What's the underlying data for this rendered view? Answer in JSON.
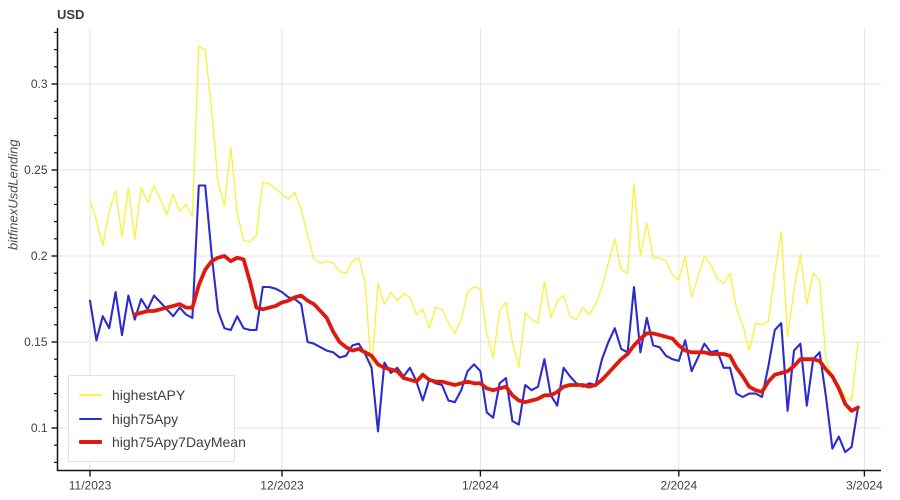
{
  "title": "USD",
  "y_axis_label": "bitfinexUsdLending",
  "colors": {
    "highestAPY": "#F8F247",
    "high75Apy": "#2C2CCE",
    "high75Apy7DayMean": "#DE1A0F",
    "grid": "#E3E3E3",
    "axis": "#141414",
    "tick_text": "#404040",
    "legend_border": "#E3E3E3",
    "background": "#FFFFFF"
  },
  "legend": {
    "position": "bottom-left",
    "items": [
      {
        "label": "highestAPY"
      },
      {
        "label": "high75Apy"
      },
      {
        "label": "high75Apy7DayMean"
      }
    ]
  },
  "chart_data": {
    "type": "line",
    "title": "USD",
    "ylabel": "bitfinexUsdLending",
    "xlabel": "",
    "grid": true,
    "legend_position": "bottom-left",
    "x_tick_labels": [
      "11/2023",
      "12/2023",
      "1/2024",
      "2/2024",
      "3/2024"
    ],
    "x_tick_days": [
      0,
      30,
      61,
      92,
      121
    ],
    "x_days_total": 121,
    "y_ticks": [
      0.1,
      0.15,
      0.2,
      0.25,
      0.3
    ],
    "y_tick_labels": [
      "0.1",
      "0.15",
      "0.2",
      "0.25",
      "0.3"
    ],
    "y_minor_step": 0.01,
    "y_minor_range": [
      0.08,
      0.33
    ],
    "ylim": [
      0.0756,
      0.3326
    ],
    "series": [
      {
        "name": "highestAPY",
        "color": "#F8F247",
        "width": 1.4,
        "values": [
          0.232,
          0.221,
          0.206,
          0.226,
          0.238,
          0.211,
          0.24,
          0.21,
          0.24,
          0.231,
          0.241,
          0.233,
          0.224,
          0.236,
          0.226,
          0.23,
          0.223,
          0.322,
          0.32,
          0.285,
          0.243,
          0.229,
          0.263,
          0.225,
          0.209,
          0.208,
          0.212,
          0.243,
          0.242,
          0.239,
          0.236,
          0.233,
          0.237,
          0.227,
          0.212,
          0.198,
          0.196,
          0.197,
          0.196,
          0.191,
          0.19,
          0.197,
          0.199,
          0.184,
          0.133,
          0.184,
          0.172,
          0.179,
          0.174,
          0.178,
          0.176,
          0.166,
          0.169,
          0.158,
          0.17,
          0.169,
          0.161,
          0.155,
          0.163,
          0.179,
          0.182,
          0.181,
          0.155,
          0.141,
          0.168,
          0.173,
          0.15,
          0.135,
          0.167,
          0.163,
          0.161,
          0.185,
          0.164,
          0.174,
          0.177,
          0.165,
          0.163,
          0.17,
          0.166,
          0.172,
          0.182,
          0.196,
          0.21,
          0.192,
          0.19,
          0.242,
          0.2,
          0.219,
          0.199,
          0.199,
          0.197,
          0.189,
          0.186,
          0.2,
          0.176,
          0.188,
          0.2,
          0.195,
          0.187,
          0.184,
          0.19,
          0.17,
          0.16,
          0.145,
          0.161,
          0.16,
          0.162,
          0.19,
          0.214,
          0.153,
          0.18,
          0.201,
          0.172,
          0.19,
          0.186,
          0.14,
          0.13,
          0.125,
          0.118,
          0.116,
          0.15
        ]
      },
      {
        "name": "high75Apy",
        "color": "#2C2CCE",
        "width": 2.1,
        "values": [
          0.174,
          0.151,
          0.165,
          0.158,
          0.179,
          0.154,
          0.177,
          0.163,
          0.175,
          0.169,
          0.177,
          0.173,
          0.169,
          0.165,
          0.17,
          0.166,
          0.164,
          0.241,
          0.241,
          0.201,
          0.168,
          0.158,
          0.157,
          0.165,
          0.158,
          0.157,
          0.157,
          0.182,
          0.182,
          0.181,
          0.179,
          0.176,
          0.175,
          0.172,
          0.15,
          0.149,
          0.147,
          0.145,
          0.144,
          0.141,
          0.142,
          0.148,
          0.149,
          0.143,
          0.135,
          0.098,
          0.138,
          0.132,
          0.135,
          0.13,
          0.135,
          0.127,
          0.116,
          0.128,
          0.126,
          0.125,
          0.116,
          0.115,
          0.122,
          0.133,
          0.137,
          0.133,
          0.109,
          0.106,
          0.126,
          0.129,
          0.104,
          0.102,
          0.125,
          0.122,
          0.124,
          0.14,
          0.119,
          0.113,
          0.135,
          0.13,
          0.126,
          0.124,
          0.126,
          0.125,
          0.14,
          0.15,
          0.158,
          0.146,
          0.144,
          0.182,
          0.144,
          0.164,
          0.148,
          0.147,
          0.142,
          0.14,
          0.139,
          0.151,
          0.133,
          0.141,
          0.149,
          0.144,
          0.145,
          0.135,
          0.135,
          0.12,
          0.118,
          0.12,
          0.12,
          0.118,
          0.136,
          0.157,
          0.161,
          0.11,
          0.145,
          0.149,
          0.113,
          0.14,
          0.144,
          0.118,
          0.088,
          0.095,
          0.086,
          0.089,
          0.112
        ]
      },
      {
        "name": "high75Apy7DayMean",
        "color": "#DE1A0F",
        "width": 3.8,
        "values": [
          null,
          null,
          null,
          null,
          null,
          null,
          null,
          0.166,
          0.167,
          0.168,
          0.168,
          0.169,
          0.17,
          0.171,
          0.172,
          0.17,
          0.17,
          0.183,
          0.192,
          0.197,
          0.199,
          0.2,
          0.197,
          0.199,
          0.198,
          0.185,
          0.17,
          0.169,
          0.17,
          0.171,
          0.173,
          0.174,
          0.176,
          0.177,
          0.174,
          0.172,
          0.168,
          0.164,
          0.156,
          0.15,
          0.147,
          0.145,
          0.146,
          0.144,
          0.142,
          0.137,
          0.135,
          0.134,
          0.133,
          0.129,
          0.128,
          0.127,
          0.131,
          0.128,
          0.127,
          0.127,
          0.126,
          0.125,
          0.126,
          0.127,
          0.126,
          0.126,
          0.123,
          0.122,
          0.123,
          0.124,
          0.119,
          0.116,
          0.115,
          0.116,
          0.117,
          0.119,
          0.119,
          0.121,
          0.124,
          0.125,
          0.125,
          0.125,
          0.124,
          0.125,
          0.128,
          0.132,
          0.136,
          0.14,
          0.143,
          0.148,
          0.152,
          0.155,
          0.155,
          0.154,
          0.153,
          0.152,
          0.148,
          0.145,
          0.144,
          0.144,
          0.144,
          0.143,
          0.143,
          0.143,
          0.142,
          0.135,
          0.13,
          0.124,
          0.122,
          0.121,
          0.127,
          0.131,
          0.132,
          0.133,
          0.136,
          0.14,
          0.14,
          0.14,
          0.139,
          0.134,
          0.13,
          0.123,
          0.114,
          0.11,
          0.112
        ]
      }
    ]
  }
}
